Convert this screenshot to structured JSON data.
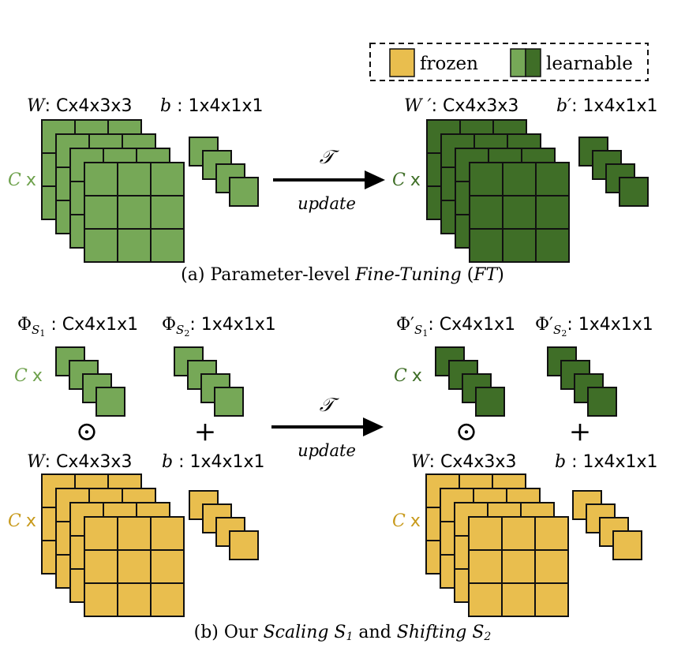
{
  "colors": {
    "frozen": "#E9BE4E",
    "frozen_grid": "#2a2400",
    "learnable_light": "#76A857",
    "learnable_dark": "#3F6E27",
    "label_frozen": "#C89A1C",
    "label_learnable_light": "#6EA14C",
    "label_learnable_dark": "#3F6E27"
  },
  "legend": {
    "frozen_label": "frozen",
    "learnable_label": "learnable"
  },
  "panel_a": {
    "w_sym": "W",
    "w_dim": ": Cx4x3x3",
    "b_sym": "b",
    "b_dim": " : 1x4x1x1",
    "wp_sym": "W ′",
    "wp_dim": ": Cx4x3x3",
    "bp_sym": "b′",
    "bp_dim": ": 1x4x1x1",
    "c_sym": "C",
    "c_x": "x",
    "arrow_top": "𝒯",
    "arrow_bottom": "update",
    "caption_prefix": "(a) Parameter-level ",
    "caption_em1": "Fine-Tuning",
    "caption_mid": " (",
    "caption_em2": "FT",
    "caption_end": ")"
  },
  "panel_b": {
    "phi": "Φ",
    "phi_prime": "Φ′",
    "s1": "S",
    "s1_sub": "1",
    "s2": "S",
    "s2_sub": "2",
    "phi1_dim": " : Cx4x1x1",
    "phi2_dim": ": 1x4x1x1",
    "phi1p_dim": ": Cx4x1x1",
    "phi2p_dim": ": 1x4x1x1",
    "w_sym": "W",
    "w_dim": ": Cx4x3x3",
    "b_sym": "b",
    "b_dim": " : 1x4x1x1",
    "c_sym": "C",
    "c_x": "x",
    "odot": "⊙",
    "plus": "+",
    "arrow_top": "𝒯",
    "arrow_bottom": "update",
    "caption_prefix": "(b) Our ",
    "caption_em1": "Scaling S",
    "caption_sub1": "1",
    "caption_mid": " and ",
    "caption_em2": "Shifting S",
    "caption_sub2": "2"
  }
}
